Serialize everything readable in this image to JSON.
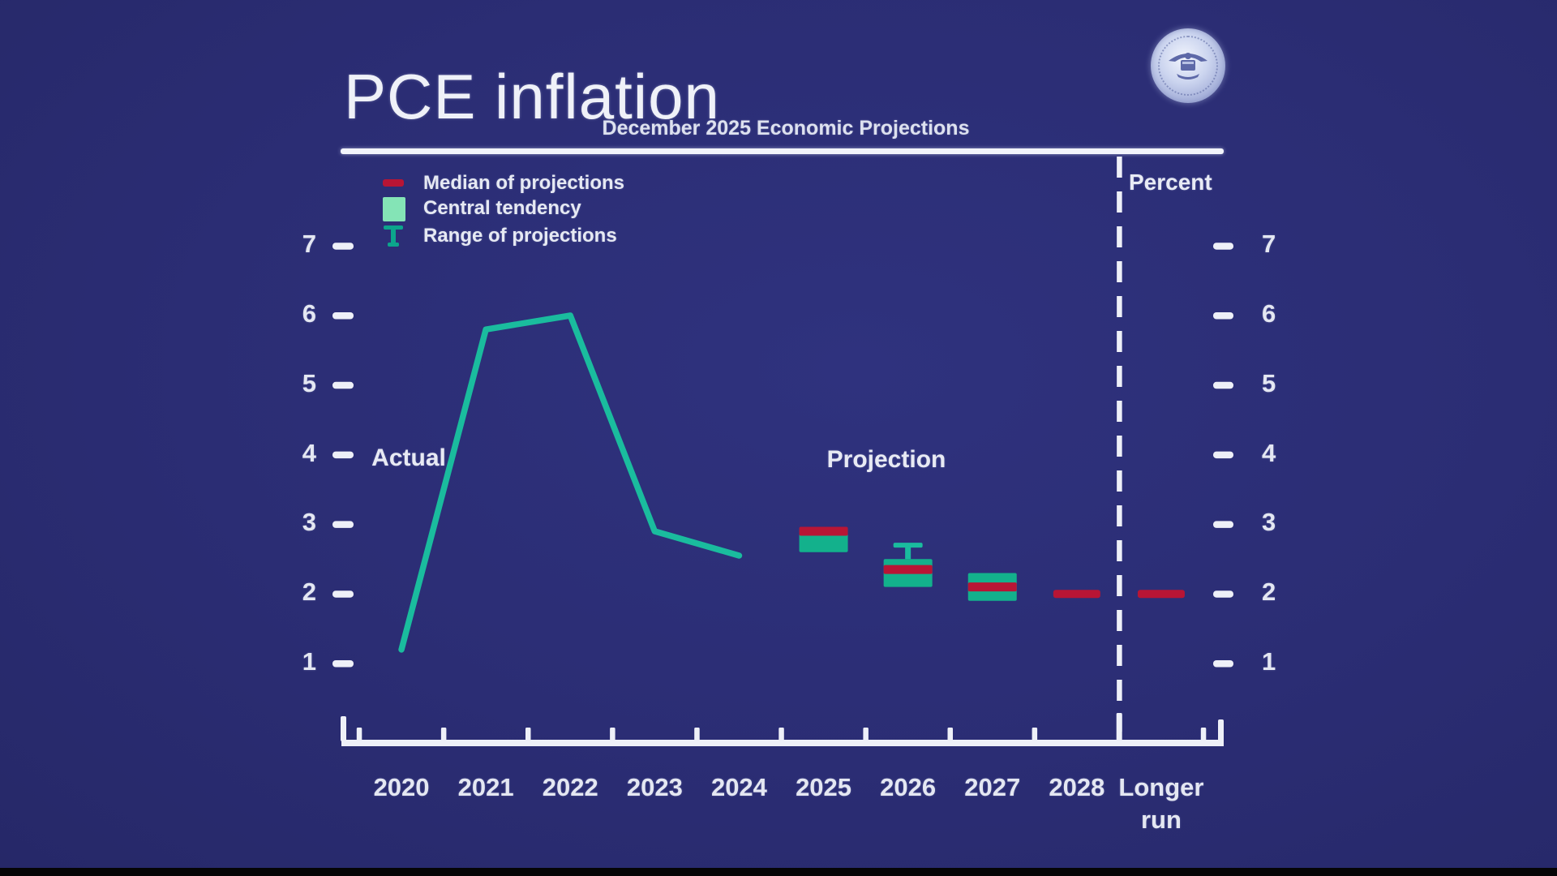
{
  "page": {
    "title": "PCE inflation",
    "subtitle": "December 2025 Economic Projections",
    "seal": "Federal Reserve seal"
  },
  "legend": {
    "items": [
      {
        "id": "median",
        "label": "Median of projections",
        "color": "#b81535"
      },
      {
        "id": "central-tendency",
        "label": "Central tendency",
        "color": "#84e4b6"
      },
      {
        "id": "range",
        "label": "Range of projections",
        "color": "#0ca58c"
      }
    ]
  },
  "chart_data": {
    "type": "line",
    "title": "PCE inflation",
    "subtitle": "December 2025 Economic Projections",
    "unit_label": "Percent",
    "x_categories": [
      "2020",
      "2021",
      "2022",
      "2023",
      "2024",
      "2025",
      "2026",
      "2027",
      "2028",
      "Longer run"
    ],
    "y_ticks": [
      1,
      2,
      3,
      4,
      5,
      6,
      7
    ],
    "ylim": [
      0.4,
      7.6
    ],
    "grid": "off",
    "legend_position": "top-left-inside",
    "annotations": {
      "actual": "Actual",
      "projection": "Projection"
    },
    "divider_between": [
      "2028",
      "Longer run"
    ],
    "actual_series": {
      "name": "Actual",
      "years": [
        "2020",
        "2021",
        "2022",
        "2023",
        "2024"
      ],
      "values": [
        1.2,
        5.8,
        6.0,
        2.9,
        2.55
      ]
    },
    "projections": [
      {
        "year": "2025",
        "median": 2.9,
        "central_tendency": [
          2.6,
          2.95
        ]
      },
      {
        "year": "2026",
        "median": 2.35,
        "central_tendency": [
          2.1,
          2.5
        ],
        "range": [
          2.1,
          2.7
        ]
      },
      {
        "year": "2027",
        "median": 2.1,
        "central_tendency": [
          1.9,
          2.3
        ]
      },
      {
        "year": "2028",
        "median": 2.0
      },
      {
        "year": "Longer run",
        "median": 2.0
      }
    ],
    "colors": {
      "background": "#2b2d74",
      "axis": "#eef0f8",
      "actual_line": "#1abc9e",
      "central_tendency_box": "#13b18c",
      "median": "#b81535"
    }
  }
}
